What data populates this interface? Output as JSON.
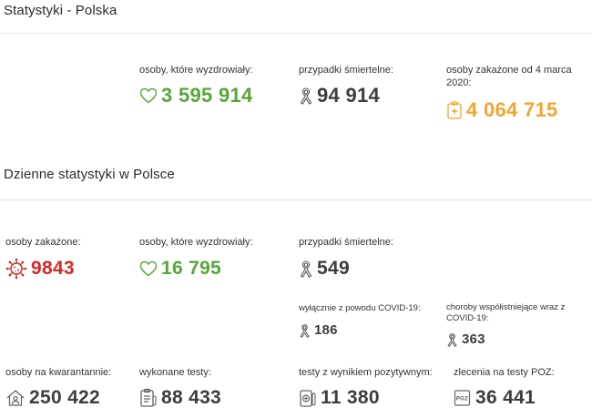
{
  "sections": {
    "poland": {
      "title": "Statystyki - Polska"
    },
    "daily": {
      "title": "Dzienne statystyki w Polsce"
    }
  },
  "totals": {
    "recovered": {
      "label": "osoby, które wyzdrowiały:",
      "value": "3 595 914",
      "icon": "heart-icon",
      "color": "#57a639"
    },
    "deaths": {
      "label": "przypadki śmiertelne:",
      "value": "94 914",
      "icon": "ribbon-icon",
      "color": "#3d3d3d"
    },
    "infected": {
      "label": "osoby zakażone od 4 marca 2020:",
      "value": "4 064 715",
      "icon": "medical-clipboard-icon",
      "color": "#f2a52e"
    }
  },
  "daily": {
    "infected": {
      "label": "osoby zakażone:",
      "value": "9843",
      "icon": "virus-icon",
      "color": "#d42828"
    },
    "recovered": {
      "label": "osoby, które wyzdrowiały:",
      "value": "16 795",
      "icon": "heart-icon",
      "color": "#57a639"
    },
    "deaths": {
      "label": "przypadki śmiertelne:",
      "value": "549",
      "icon": "ribbon-icon",
      "color": "#3d3d3d"
    },
    "deaths_covid_only": {
      "label": "wyłącznie z powodu COVID-19:",
      "value": "186",
      "icon": "ribbon-icon"
    },
    "deaths_comorbid": {
      "label": "choroby współistniejące wraz z COVID-19:",
      "value": "363",
      "icon": "ribbon-icon"
    },
    "quarantine": {
      "label": "osoby na kwarantannie:",
      "value": "250 422",
      "icon": "house-person-icon"
    },
    "tests": {
      "label": "wykonane testy:",
      "value": "88 433",
      "icon": "test-clipboard-icon"
    },
    "positive_tests": {
      "label": "testy z wynikiem pozytywnym:",
      "value": "11 380",
      "icon": "test-tube-plus-icon"
    },
    "poz_orders": {
      "label": "zlecenia na testy POZ:",
      "value": "36 441",
      "icon": "poz-document-icon",
      "icon_text": "POZ"
    }
  }
}
